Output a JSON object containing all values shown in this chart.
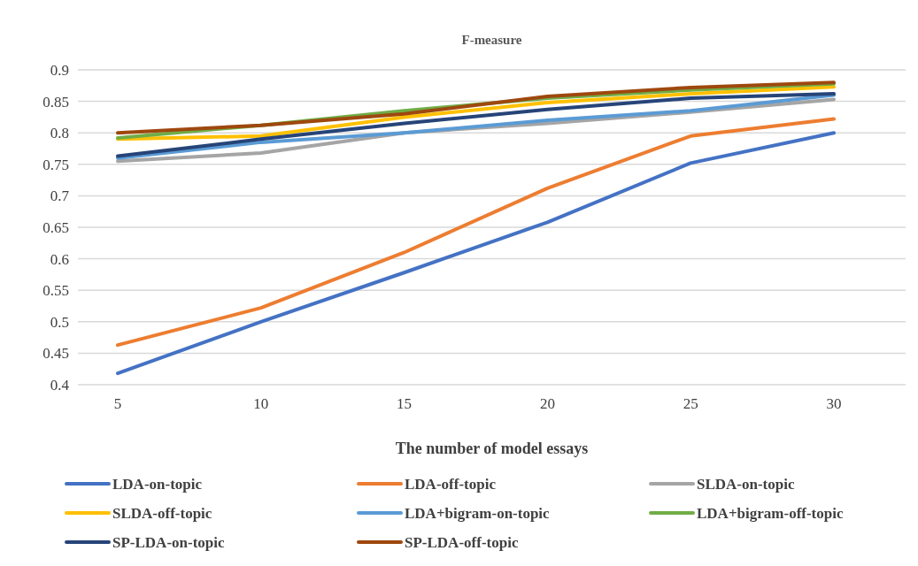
{
  "chart_data": {
    "type": "line",
    "title": "F-measure",
    "xlabel": "The number of model essays",
    "categories": [
      "5",
      "10",
      "15",
      "20",
      "25",
      "30"
    ],
    "ylim": [
      0.4,
      0.9
    ],
    "yticks": [
      0.4,
      0.45,
      0.5,
      0.55,
      0.6,
      0.65,
      0.7,
      0.75,
      0.8,
      0.85,
      0.9
    ],
    "grid": "y",
    "legend": "bottom",
    "marker": "none",
    "series": [
      {
        "name": "LDA-on-topic",
        "color": "#4472c4",
        "values": [
          0.418,
          0.5,
          0.578,
          0.658,
          0.752,
          0.8
        ]
      },
      {
        "name": "LDA-off-topic",
        "color": "#ed7d31",
        "values": [
          0.463,
          0.522,
          0.61,
          0.712,
          0.795,
          0.822
        ]
      },
      {
        "name": "SLDA-on-topic",
        "color": "#a5a5a5",
        "values": [
          0.755,
          0.768,
          0.8,
          0.815,
          0.833,
          0.853
        ]
      },
      {
        "name": "SLDA-off-topic",
        "color": "#ffc000",
        "values": [
          0.79,
          0.795,
          0.825,
          0.848,
          0.862,
          0.873
        ]
      },
      {
        "name": "LDA+bigram-on-topic",
        "color": "#5b9bd5",
        "values": [
          0.76,
          0.785,
          0.8,
          0.82,
          0.835,
          0.86
        ]
      },
      {
        "name": "LDA+bigram-off-topic",
        "color": "#70ad47",
        "values": [
          0.792,
          0.812,
          0.835,
          0.855,
          0.868,
          0.878
        ]
      },
      {
        "name": "SP-LDA-on-topic",
        "color": "#264478",
        "values": [
          0.763,
          0.79,
          0.815,
          0.837,
          0.855,
          0.862
        ]
      },
      {
        "name": "SP-LDA-off-topic",
        "color": "#9e480e",
        "values": [
          0.8,
          0.812,
          0.83,
          0.858,
          0.872,
          0.88
        ]
      }
    ]
  }
}
